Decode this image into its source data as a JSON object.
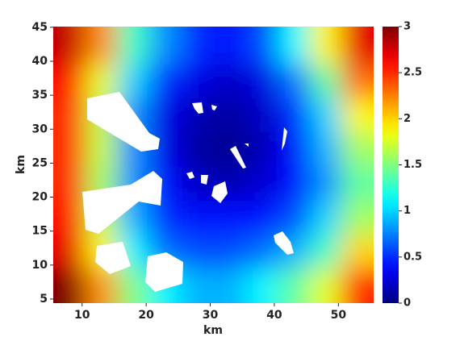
{
  "chart_data": {
    "type": "heatmap",
    "xlabel": "km",
    "ylabel": "km",
    "xlim": [
      5.5,
      55.5
    ],
    "ylim": [
      4.4,
      45.1
    ],
    "xticks": [
      10,
      20,
      30,
      40,
      50
    ],
    "yticks": [
      5,
      10,
      15,
      20,
      25,
      30,
      35,
      40,
      45
    ],
    "colormap": "jet",
    "clim": [
      0,
      3
    ],
    "cticks": [
      0,
      0.5,
      1,
      1.5,
      2,
      2.5,
      3
    ],
    "x": [
      8,
      13,
      18,
      23,
      28,
      33,
      38,
      43,
      48,
      53
    ],
    "y": [
      42,
      37,
      32,
      27,
      22,
      17,
      12,
      7
    ],
    "z": [
      [
        2.8,
        2.2,
        1.3,
        0.8,
        0.5,
        0.4,
        0.6,
        1.1,
        1.9,
        2.7
      ],
      [
        2.6,
        1.8,
        1.0,
        0.5,
        0.3,
        0.2,
        0.3,
        0.7,
        1.4,
        2.3
      ],
      [
        2.5,
        1.7,
        0.8,
        0.3,
        0.15,
        0.1,
        0.2,
        0.5,
        1.0,
        1.9
      ],
      [
        2.5,
        1.7,
        0.8,
        0.3,
        0.1,
        0.05,
        0.15,
        0.4,
        0.9,
        1.6
      ],
      [
        2.5,
        1.6,
        0.8,
        0.4,
        0.2,
        0.15,
        0.25,
        0.4,
        0.8,
        1.4
      ],
      [
        2.6,
        1.7,
        0.9,
        0.5,
        0.4,
        0.4,
        0.4,
        0.6,
        1.0,
        1.6
      ],
      [
        2.7,
        1.9,
        1.1,
        0.7,
        0.6,
        0.6,
        0.7,
        0.9,
        1.3,
        2.0
      ],
      [
        3.0,
        2.2,
        1.5,
        1.1,
        0.9,
        0.9,
        1.1,
        1.4,
        1.8,
        2.5
      ]
    ]
  }
}
